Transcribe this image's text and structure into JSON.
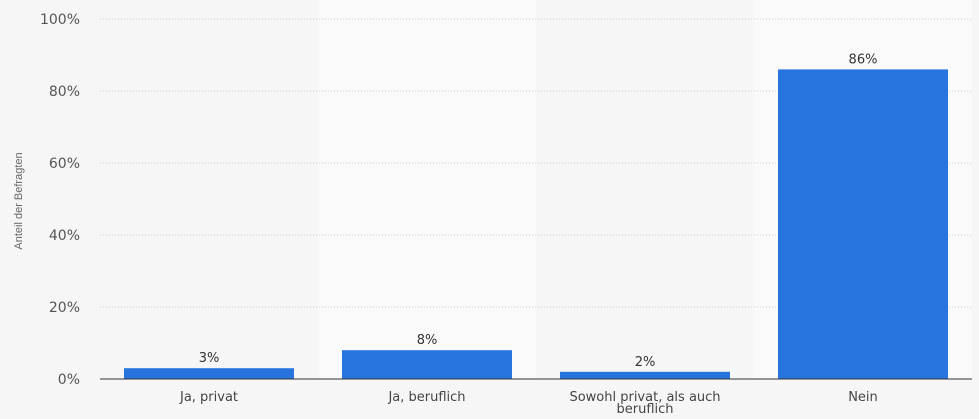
{
  "chart_data": {
    "type": "bar",
    "title": "",
    "xlabel": "",
    "ylabel": "Anteil der Befragten",
    "ylim": [
      0,
      100
    ],
    "yticks": [
      0,
      20,
      40,
      60,
      80,
      100
    ],
    "ytick_labels": [
      "0%",
      "20%",
      "40%",
      "60%",
      "80%",
      "100%"
    ],
    "grid": true,
    "categories": [
      [
        "Ja, privat"
      ],
      [
        "Ja, beruflich"
      ],
      [
        "Sowohl privat, als auch",
        "beruflich"
      ],
      [
        "Nein"
      ]
    ],
    "values": [
      3,
      8,
      2,
      86
    ],
    "value_labels": [
      "3%",
      "8%",
      "2%",
      "86%"
    ],
    "bar_color": "#2874df",
    "band_colors": [
      "#f6f6f6",
      "#fafafa"
    ],
    "background": "#f6f6f6",
    "grid_color": "#c8c8c8",
    "axis_color": "#333333"
  }
}
